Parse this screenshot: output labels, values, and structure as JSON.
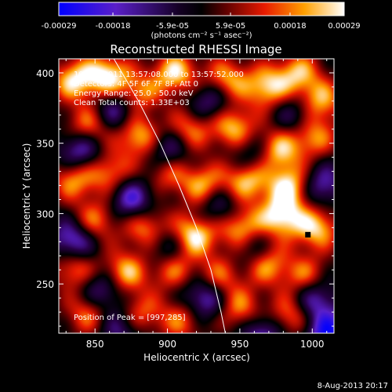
{
  "colors": {
    "background": "#000000",
    "text": "#ffffff",
    "limb_line": "#ffffff"
  },
  "colorbar": {
    "tick_labels": [
      "-0.00029",
      "-0.00018",
      "-5.9e-05",
      "5.9e-05",
      "0.00018",
      "0.00029"
    ],
    "tick_values": [
      -0.00029,
      -0.00018,
      -5.9e-05,
      5.9e-05,
      0.00018,
      0.00029
    ],
    "range": [
      -0.00029,
      0.00029
    ],
    "unit_label": "(photons cm⁻² s⁻¹ asec⁻²)",
    "colormap": "blue-purple-black-red-orange-yellow-white"
  },
  "chart_data": {
    "type": "heatmap",
    "title": "Reconstructed RHESSI Image",
    "xlabel": "Heliocentric X (arcsec)",
    "ylabel": "Heliocentric Y (arcsec)",
    "xlim": [
      825,
      1015
    ],
    "ylim": [
      215,
      410
    ],
    "x_ticks": [
      850,
      900,
      950,
      1000
    ],
    "y_ticks": [
      250,
      300,
      350,
      400
    ],
    "x_tick_labels": [
      "850",
      "900",
      "950",
      "1000"
    ],
    "y_tick_labels": [
      "250",
      "300",
      "350",
      "400"
    ],
    "annotations": [
      "19-Oct-2011 13:57:08.000 to 13:57:52.000",
      "Detectors: 4F 5F 6F 7F 8F, Att 0",
      "Energy Range: 25.0 - 50.0 keV",
      "Clean    Total counts: 1.33E+03"
    ],
    "peak_label": "Position of Peak = [997,285]",
    "peak": [
      997,
      285
    ],
    "limb_curve": [
      [
        863,
        410
      ],
      [
        880,
        380
      ],
      [
        895,
        350
      ],
      [
        908,
        320
      ],
      [
        920,
        290
      ],
      [
        930,
        260
      ],
      [
        937,
        230
      ],
      [
        940,
        215
      ]
    ],
    "blobs": [
      {
        "x": 835,
        "y": 395,
        "v": 0.8
      },
      {
        "x": 858,
        "y": 398,
        "v": 0.9
      },
      {
        "x": 878,
        "y": 385,
        "v": 0.7
      },
      {
        "x": 905,
        "y": 400,
        "v": 0.85
      },
      {
        "x": 940,
        "y": 395,
        "v": 0.75
      },
      {
        "x": 968,
        "y": 390,
        "v": 0.8
      },
      {
        "x": 990,
        "y": 400,
        "v": 0.7
      },
      {
        "x": 1005,
        "y": 380,
        "v": 0.75
      },
      {
        "x": 845,
        "y": 362,
        "v": 0.7
      },
      {
        "x": 880,
        "y": 355,
        "v": 0.8
      },
      {
        "x": 915,
        "y": 360,
        "v": 0.65
      },
      {
        "x": 945,
        "y": 362,
        "v": 0.8
      },
      {
        "x": 975,
        "y": 345,
        "v": 0.85
      },
      {
        "x": 1000,
        "y": 355,
        "v": 0.7
      },
      {
        "x": 835,
        "y": 325,
        "v": 0.7
      },
      {
        "x": 860,
        "y": 330,
        "v": 0.65
      },
      {
        "x": 900,
        "y": 330,
        "v": 0.6
      },
      {
        "x": 925,
        "y": 320,
        "v": 0.75
      },
      {
        "x": 955,
        "y": 325,
        "v": 0.9
      },
      {
        "x": 985,
        "y": 320,
        "v": 0.85
      },
      {
        "x": 850,
        "y": 295,
        "v": 0.65
      },
      {
        "x": 885,
        "y": 290,
        "v": 0.7
      },
      {
        "x": 918,
        "y": 285,
        "v": 0.95
      },
      {
        "x": 950,
        "y": 290,
        "v": 0.85
      },
      {
        "x": 978,
        "y": 298,
        "v": 0.9
      },
      {
        "x": 1003,
        "y": 290,
        "v": 0.8
      },
      {
        "x": 835,
        "y": 262,
        "v": 0.7
      },
      {
        "x": 870,
        "y": 258,
        "v": 0.8
      },
      {
        "x": 903,
        "y": 262,
        "v": 0.7
      },
      {
        "x": 935,
        "y": 255,
        "v": 0.6
      },
      {
        "x": 968,
        "y": 265,
        "v": 0.8
      },
      {
        "x": 995,
        "y": 255,
        "v": 0.65
      },
      {
        "x": 845,
        "y": 230,
        "v": 0.65
      },
      {
        "x": 880,
        "y": 228,
        "v": 0.7
      },
      {
        "x": 910,
        "y": 225,
        "v": 0.6
      },
      {
        "x": 950,
        "y": 232,
        "v": 0.65
      },
      {
        "x": 985,
        "y": 228,
        "v": 0.7
      },
      {
        "x": 865,
        "y": 375,
        "v": -0.7
      },
      {
        "x": 930,
        "y": 380,
        "v": -0.6
      },
      {
        "x": 990,
        "y": 370,
        "v": -0.5
      },
      {
        "x": 840,
        "y": 345,
        "v": -0.75
      },
      {
        "x": 900,
        "y": 345,
        "v": -0.65
      },
      {
        "x": 960,
        "y": 340,
        "v": -0.6
      },
      {
        "x": 875,
        "y": 310,
        "v": -0.7
      },
      {
        "x": 935,
        "y": 305,
        "v": -0.55
      },
      {
        "x": 1005,
        "y": 320,
        "v": -0.6
      },
      {
        "x": 835,
        "y": 280,
        "v": -0.8
      },
      {
        "x": 900,
        "y": 275,
        "v": -0.6
      },
      {
        "x": 960,
        "y": 275,
        "v": -0.55
      },
      {
        "x": 855,
        "y": 245,
        "v": -0.65
      },
      {
        "x": 925,
        "y": 240,
        "v": -0.75
      },
      {
        "x": 1000,
        "y": 240,
        "v": -0.7
      },
      {
        "x": 870,
        "y": 220,
        "v": -0.6
      },
      {
        "x": 965,
        "y": 215,
        "v": -0.65
      },
      {
        "x": 1010,
        "y": 215,
        "v": -0.8
      }
    ]
  },
  "footer": {
    "date": "8-Aug-2013 20:17"
  }
}
